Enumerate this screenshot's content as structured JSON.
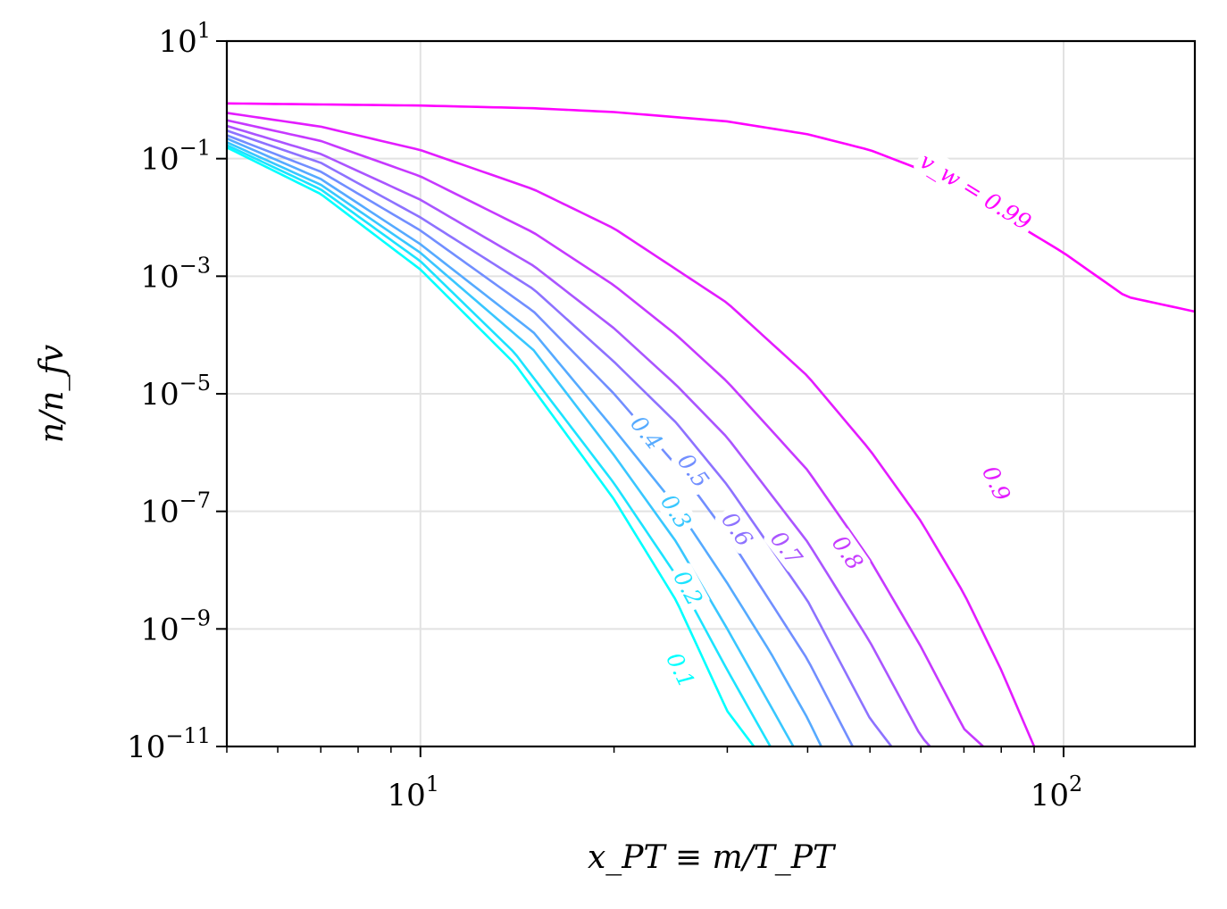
{
  "chart_data": {
    "type": "line",
    "title": "",
    "xlabel": "x_PT ≡ m/T_PT",
    "ylabel": "n/n_fv",
    "xscale": "log",
    "yscale": "log",
    "xlim": [
      5,
      160
    ],
    "ylim": [
      1e-11,
      10
    ],
    "grid": true,
    "x_ticks": [
      {
        "value": 10,
        "base": "10",
        "exp": "1"
      },
      {
        "value": 100,
        "base": "10",
        "exp": "2"
      }
    ],
    "y_ticks": [
      {
        "value": 10,
        "base": "10",
        "exp": "1"
      },
      {
        "value": 0.1,
        "base": "10",
        "exp": "−1"
      },
      {
        "value": 0.001,
        "base": "10",
        "exp": "−3"
      },
      {
        "value": 1e-05,
        "base": "10",
        "exp": "−5"
      },
      {
        "value": 1e-07,
        "base": "10",
        "exp": "−7"
      },
      {
        "value": 1e-09,
        "base": "10",
        "exp": "−9"
      },
      {
        "value": 1e-11,
        "base": "10",
        "exp": "−11"
      }
    ],
    "series": [
      {
        "label": "0.1",
        "color": "#00ffff",
        "points": [
          [
            5,
            0.155
          ],
          [
            7,
            0.025
          ],
          [
            10,
            0.0013
          ],
          [
            14,
            3.3e-05
          ],
          [
            20,
            1.6e-07
          ],
          [
            25,
            3e-09
          ],
          [
            30,
            4e-11
          ],
          [
            33,
            1e-11
          ]
        ],
        "label_at": [
          25.4,
          2e-10
        ]
      },
      {
        "label": "0.2",
        "color": "#1ce3ff",
        "points": [
          [
            5,
            0.17
          ],
          [
            7,
            0.03
          ],
          [
            10,
            0.0018
          ],
          [
            14,
            5e-05
          ],
          [
            20,
            3e-07
          ],
          [
            25,
            8e-09
          ],
          [
            30,
            2e-10
          ],
          [
            35,
            1e-11
          ]
        ],
        "label_at": [
          26.1,
          5e-09
        ]
      },
      {
        "label": "0.3",
        "color": "#38c7ff",
        "points": [
          [
            5,
            0.19
          ],
          [
            7,
            0.036
          ],
          [
            10,
            0.0025
          ],
          [
            15,
            5.5e-05
          ],
          [
            20,
            9e-07
          ],
          [
            25,
            3e-08
          ],
          [
            30,
            1e-09
          ],
          [
            35,
            5e-11
          ],
          [
            38,
            1e-11
          ]
        ],
        "label_at": [
          25.0,
          1e-07
        ]
      },
      {
        "label": "0.4",
        "color": "#55aaff",
        "points": [
          [
            5,
            0.22
          ],
          [
            7,
            0.045
          ],
          [
            10,
            0.0035
          ],
          [
            15,
            0.00011
          ],
          [
            20,
            2.5e-06
          ],
          [
            25,
            1.2e-07
          ],
          [
            30,
            6e-09
          ],
          [
            35,
            4e-10
          ],
          [
            40,
            3e-11
          ],
          [
            42,
            1e-11
          ]
        ],
        "label_at": [
          22.5,
          2.2e-06
        ]
      },
      {
        "label": "0.5",
        "color": "#718eff",
        "points": [
          [
            5,
            0.25
          ],
          [
            7,
            0.06
          ],
          [
            10,
            0.006
          ],
          [
            15,
            0.00025
          ],
          [
            20,
            1e-05
          ],
          [
            25,
            6e-07
          ],
          [
            30,
            4e-08
          ],
          [
            40,
            3e-10
          ],
          [
            47,
            1e-11
          ]
        ],
        "label_at": [
          26.6,
          5e-07
        ]
      },
      {
        "label": "0.6",
        "color": "#8d72ff",
        "points": [
          [
            5,
            0.3
          ],
          [
            7,
            0.085
          ],
          [
            10,
            0.01
          ],
          [
            15,
            0.0006
          ],
          [
            20,
            3.5e-05
          ],
          [
            25,
            3.2e-06
          ],
          [
            30,
            2.8e-07
          ],
          [
            40,
            3e-09
          ],
          [
            50,
            3e-11
          ],
          [
            54,
            1e-11
          ]
        ],
        "label_at": [
          31.1,
          5e-08
        ]
      },
      {
        "label": "0.7",
        "color": "#aa55ff",
        "points": [
          [
            5,
            0.36
          ],
          [
            7,
            0.12
          ],
          [
            10,
            0.02
          ],
          [
            15,
            0.0015
          ],
          [
            20,
            0.00013
          ],
          [
            25,
            1.4e-05
          ],
          [
            30,
            1.8e-06
          ],
          [
            40,
            3e-08
          ],
          [
            50,
            6e-10
          ],
          [
            60,
            1.5e-11
          ],
          [
            62,
            1e-11
          ]
        ],
        "label_at": [
          37.1,
          2.4e-08
        ]
      },
      {
        "label": "0.8",
        "color": "#c639ff",
        "points": [
          [
            5,
            0.45
          ],
          [
            7,
            0.2
          ],
          [
            10,
            0.05
          ],
          [
            15,
            0.0055
          ],
          [
            20,
            0.0007
          ],
          [
            25,
            0.0001
          ],
          [
            30,
            1.6e-05
          ],
          [
            40,
            5e-07
          ],
          [
            50,
            1.5e-08
          ],
          [
            60,
            5e-10
          ],
          [
            70,
            2e-11
          ],
          [
            75,
            1e-11
          ]
        ],
        "label_at": [
          46.2,
          2e-08
        ]
      },
      {
        "label": "0.9",
        "color": "#e31cff",
        "points": [
          [
            5,
            0.6
          ],
          [
            7,
            0.35
          ],
          [
            10,
            0.14
          ],
          [
            15,
            0.03
          ],
          [
            20,
            0.0065
          ],
          [
            30,
            0.00035
          ],
          [
            40,
            2e-05
          ],
          [
            50,
            1.1e-06
          ],
          [
            60,
            6.8e-08
          ],
          [
            70,
            4e-09
          ],
          [
            80,
            2e-10
          ],
          [
            90,
            1e-11
          ]
        ],
        "label_at": [
          78.7,
          3e-07
        ]
      },
      {
        "label": "v_w = 0.99",
        "color": "#ff00ff",
        "points": [
          [
            5,
            0.87
          ],
          [
            10,
            0.8
          ],
          [
            15,
            0.72
          ],
          [
            20,
            0.62
          ],
          [
            30,
            0.43
          ],
          [
            40,
            0.26
          ],
          [
            50,
            0.14
          ],
          [
            60,
            0.065
          ],
          [
            70,
            0.027
          ],
          [
            80,
            0.011
          ],
          [
            100,
            0.0025
          ],
          [
            125,
            0.00045
          ],
          [
            160,
            0.00025
          ]
        ],
        "label_at": [
          73.0,
          0.028
        ]
      }
    ]
  }
}
